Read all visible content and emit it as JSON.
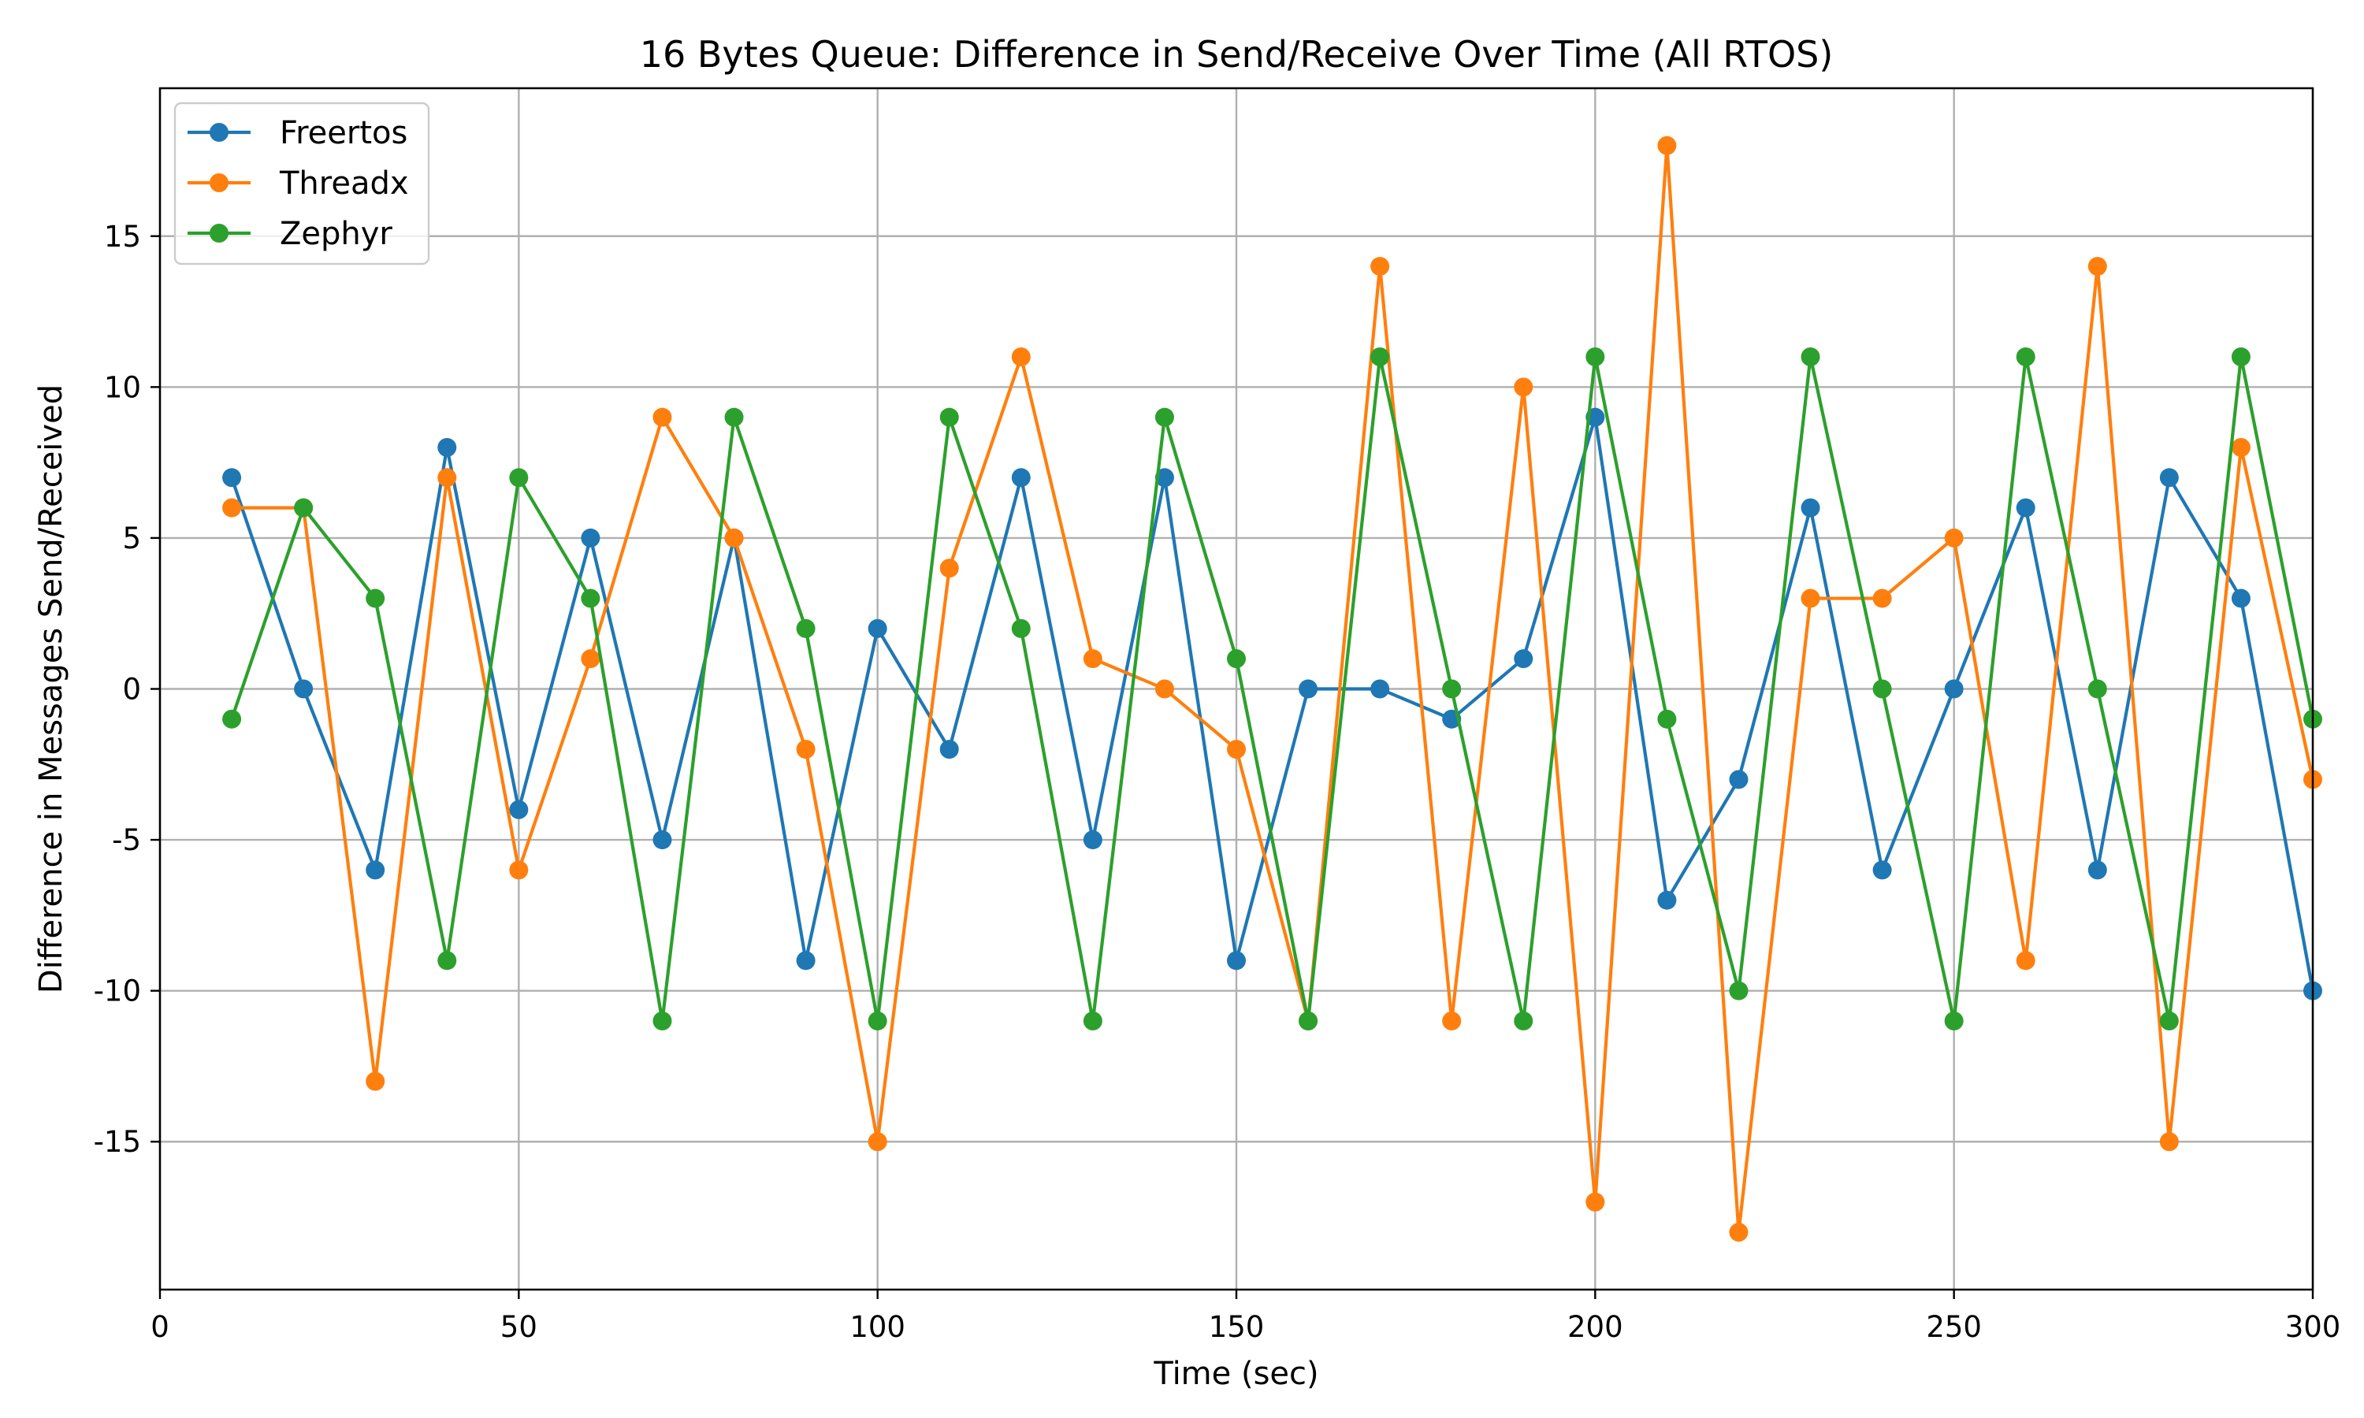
{
  "chart_data": {
    "type": "line",
    "title": "16 Bytes Queue: Difference in Send/Receive Over Time (All RTOS)",
    "xlabel": "Time (sec)",
    "ylabel": "Difference in Messages Send/Received",
    "xlim": [
      0,
      300
    ],
    "ylim": [
      -19.9,
      19.9
    ],
    "x_ticks": [
      0,
      50,
      100,
      150,
      200,
      250,
      300
    ],
    "y_ticks": [
      -15,
      -10,
      -5,
      0,
      5,
      10,
      15
    ],
    "x_tick_labels": [
      "0",
      "50",
      "100",
      "150",
      "200",
      "250",
      "300"
    ],
    "y_tick_labels": [
      "-15",
      "-10",
      "-5",
      "0",
      "5",
      "10",
      "15"
    ],
    "grid": true,
    "legend_position": "top-left",
    "x": [
      10,
      20,
      30,
      40,
      50,
      60,
      70,
      80,
      90,
      100,
      110,
      120,
      130,
      140,
      150,
      160,
      170,
      180,
      190,
      200,
      210,
      220,
      230,
      240,
      250,
      260,
      270,
      280,
      290,
      300
    ],
    "series": [
      {
        "name": "Freertos",
        "color": "#1f77b4",
        "values": [
          7,
          0,
          -6,
          8,
          -4,
          5,
          -5,
          5,
          -9,
          2,
          -2,
          7,
          -5,
          7,
          -9,
          0,
          0,
          -1,
          1,
          9,
          -7,
          -3,
          6,
          -6,
          0,
          6,
          -6,
          7,
          3,
          -10
        ]
      },
      {
        "name": "Threadx",
        "color": "#ff7f0e",
        "values": [
          6,
          6,
          -13,
          7,
          -6,
          1,
          9,
          5,
          -2,
          -15,
          4,
          11,
          1,
          0,
          -2,
          -11,
          14,
          -11,
          10,
          -17,
          18,
          -18,
          3,
          3,
          5,
          -9,
          14,
          -15,
          8,
          -3
        ]
      },
      {
        "name": "Zephyr",
        "color": "#2ca02c",
        "values": [
          -1,
          6,
          3,
          -9,
          7,
          3,
          -11,
          9,
          2,
          -11,
          9,
          2,
          -11,
          9,
          1,
          -11,
          11,
          0,
          -11,
          11,
          -1,
          -10,
          11,
          0,
          -11,
          11,
          0,
          -11,
          11,
          -1
        ]
      }
    ]
  }
}
